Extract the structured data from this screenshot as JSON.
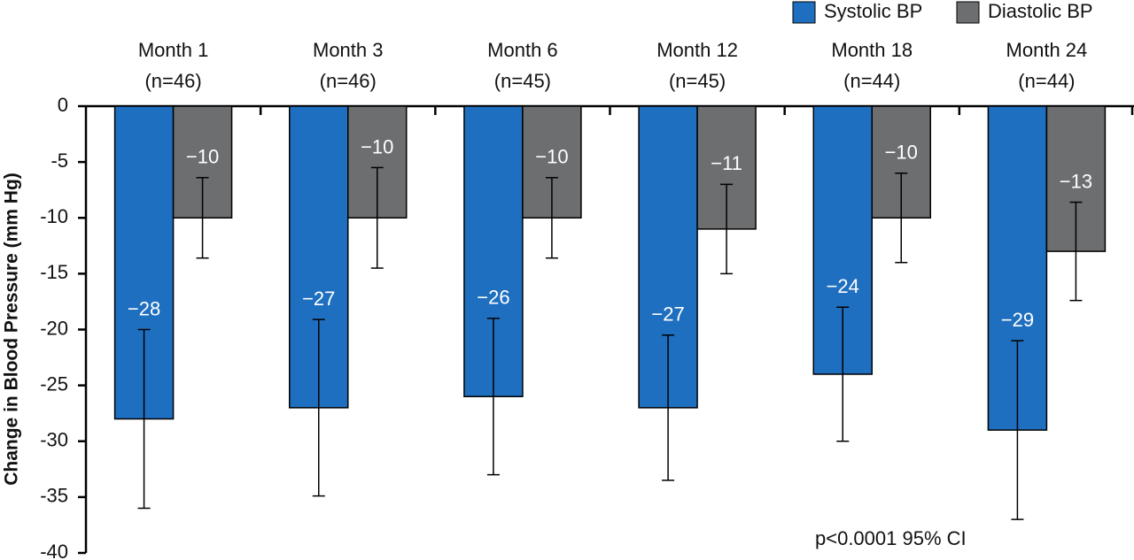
{
  "chart_data": {
    "type": "bar",
    "y_label": "Change in Blood Pressure (mm Hg)",
    "categories": [
      "Month 1",
      "Month 3",
      "Month 6",
      "Month 12",
      "Month 18",
      "Month 24"
    ],
    "sample_sizes": [
      "(n=46)",
      "(n=46)",
      "(n=45)",
      "(n=45)",
      "(n=44)",
      "(n=44)"
    ],
    "series": [
      {
        "name": "Systolic BP",
        "color": "#1f6fc0",
        "values": [
          -28,
          -27,
          -26,
          -27,
          -24,
          -29
        ],
        "value_labels": [
          "−28",
          "−27",
          "−26",
          "−27",
          "−24",
          "−29"
        ],
        "errors": [
          8,
          7.9,
          7,
          6.5,
          6,
          8
        ]
      },
      {
        "name": "Diastolic BP",
        "color": "#6d6e70",
        "values": [
          -10,
          -10,
          -10,
          -11,
          -10,
          -13
        ],
        "value_labels": [
          "−10",
          "−10",
          "−10",
          "−11",
          "−10",
          "−13"
        ],
        "errors": [
          3.6,
          4.5,
          3.6,
          4,
          4,
          4.4
        ]
      }
    ],
    "ylim": [
      0,
      -40
    ],
    "yticks": [
      0,
      -5,
      -10,
      -15,
      -20,
      -25,
      -30,
      -35,
      -40
    ],
    "annotation": "p<0.0001 95% CI"
  }
}
